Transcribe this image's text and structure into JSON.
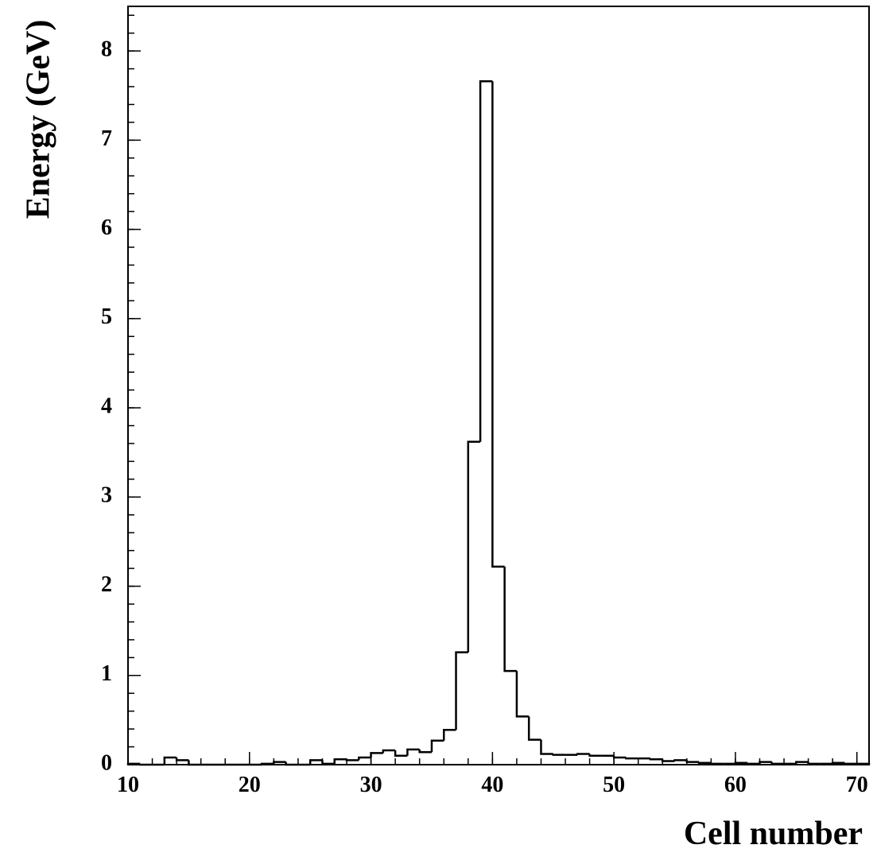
{
  "chart_data": {
    "type": "histogram",
    "x_label": "Cell number",
    "y_label": "Energy (GeV)",
    "bins": [
      10,
      11,
      12,
      13,
      14,
      15,
      16,
      17,
      18,
      19,
      20,
      21,
      22,
      23,
      24,
      25,
      26,
      27,
      28,
      29,
      30,
      31,
      32,
      33,
      34,
      35,
      36,
      37,
      38,
      39,
      40,
      41,
      42,
      43,
      44,
      45,
      46,
      47,
      48,
      49,
      50,
      51,
      52,
      53,
      54,
      55,
      56,
      57,
      58,
      59,
      60,
      61,
      62,
      63,
      64,
      65,
      66,
      67,
      68,
      69,
      70,
      71
    ],
    "values": [
      0.01,
      0,
      0,
      0.08,
      0.05,
      0,
      0,
      0,
      0,
      0,
      0,
      0.01,
      0.03,
      0,
      0,
      0.05,
      0.01,
      0.06,
      0.05,
      0.08,
      0.13,
      0.16,
      0.1,
      0.17,
      0.14,
      0.27,
      0.39,
      1.26,
      3.62,
      7.66,
      2.22,
      1.05,
      0.54,
      0.28,
      0.12,
      0.11,
      0.11,
      0.12,
      0.1,
      0.1,
      0.08,
      0.07,
      0.07,
      0.06,
      0.04,
      0.05,
      0.03,
      0.02,
      0.01,
      0.01,
      0.02,
      0.01,
      0.03,
      0.01,
      0.01,
      0.03,
      0.01,
      0.01,
      0.02,
      0.01,
      0.01
    ],
    "color": "#000000",
    "xlim": [
      10,
      71
    ],
    "ylim": [
      0,
      8.5
    ],
    "xticks": [
      10,
      20,
      30,
      40,
      50,
      60,
      70
    ],
    "yticks": [
      0,
      1,
      2,
      3,
      4,
      5,
      6,
      7,
      8
    ]
  }
}
